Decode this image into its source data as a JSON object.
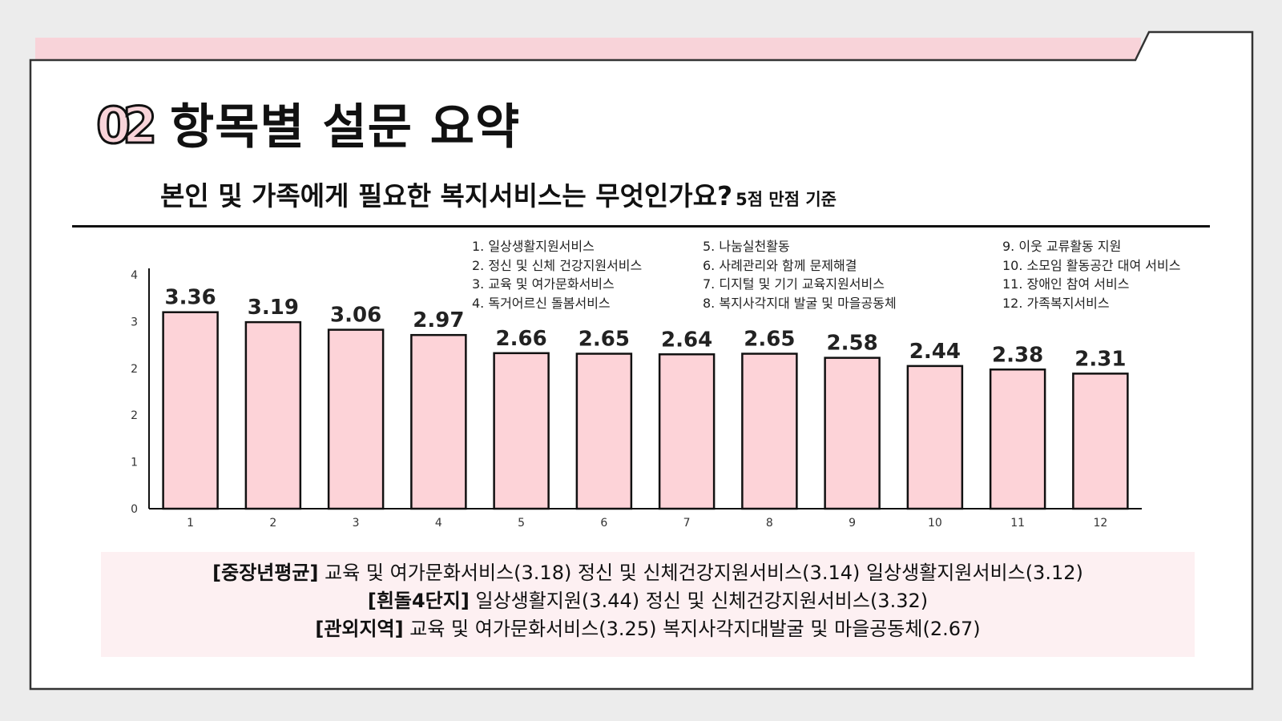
{
  "header": {
    "number": "02",
    "title": "항목별 설문 요약",
    "question": "본인 및 가족에게 필요한 복지서비스는 무엇인가요?",
    "basis": "5점 만점 기준"
  },
  "legend": {
    "col1": [
      "1. 일상생활지원서비스",
      "2. 정신 및 신체 건강지원서비스",
      "3. 교육 및 여가문화서비스",
      "4. 독거어르신 돌봄서비스"
    ],
    "col2": [
      "5. 나눔실천활동",
      "6. 사례관리와 함께 문제해결",
      "7. 디지털 및 기기 교육지원서비스",
      "8. 복지사각지대 발굴 및 마을공동체"
    ],
    "col3": [
      "9. 이웃 교류활동 지원",
      "10. 소모임 활동공간 대여 서비스",
      "11. 장애인 참여 서비스",
      "12. 가족복지서비스"
    ]
  },
  "chart_data": {
    "type": "bar",
    "categories": [
      "1",
      "2",
      "3",
      "4",
      "5",
      "6",
      "7",
      "8",
      "9",
      "10",
      "11",
      "12"
    ],
    "values": [
      3.36,
      3.19,
      3.06,
      2.97,
      2.66,
      2.65,
      2.64,
      2.65,
      2.58,
      2.44,
      2.38,
      2.31
    ],
    "value_labels": [
      "3.36",
      "3.19",
      "3.06",
      "2.97",
      "2.66",
      "2.65",
      "2.64",
      "2.65",
      "2.58",
      "2.44",
      "2.38",
      "2.31"
    ],
    "y_tick_labels": [
      "0",
      "1",
      "2",
      "2",
      "3",
      "4"
    ],
    "ylim": [
      0,
      4
    ],
    "title": "",
    "xlabel": "",
    "ylabel": "",
    "grid": false,
    "colors": {
      "bar_fill": "#fdd3d8",
      "bar_stroke": "#111111"
    }
  },
  "summary": {
    "rows": [
      {
        "tag": "[중장년평균]",
        "text": " 교육 및 여가문화서비스(3.18)  정신 및 신체건강지원서비스(3.14)  일상생활지원서비스(3.12)"
      },
      {
        "tag": "[흰돌4단지]",
        "text": " 일상생활지원(3.44)   정신 및 신체건강지원서비스(3.32)"
      },
      {
        "tag": "[관외지역]",
        "text": " 교육 및 여가문화서비스(3.25)   복지사각지대발굴 및 마을공동체(2.67)"
      }
    ]
  },
  "colors": {
    "accent": "#f8d3d9",
    "frame": "#333333",
    "summary_bg": "#fdf0f2"
  }
}
